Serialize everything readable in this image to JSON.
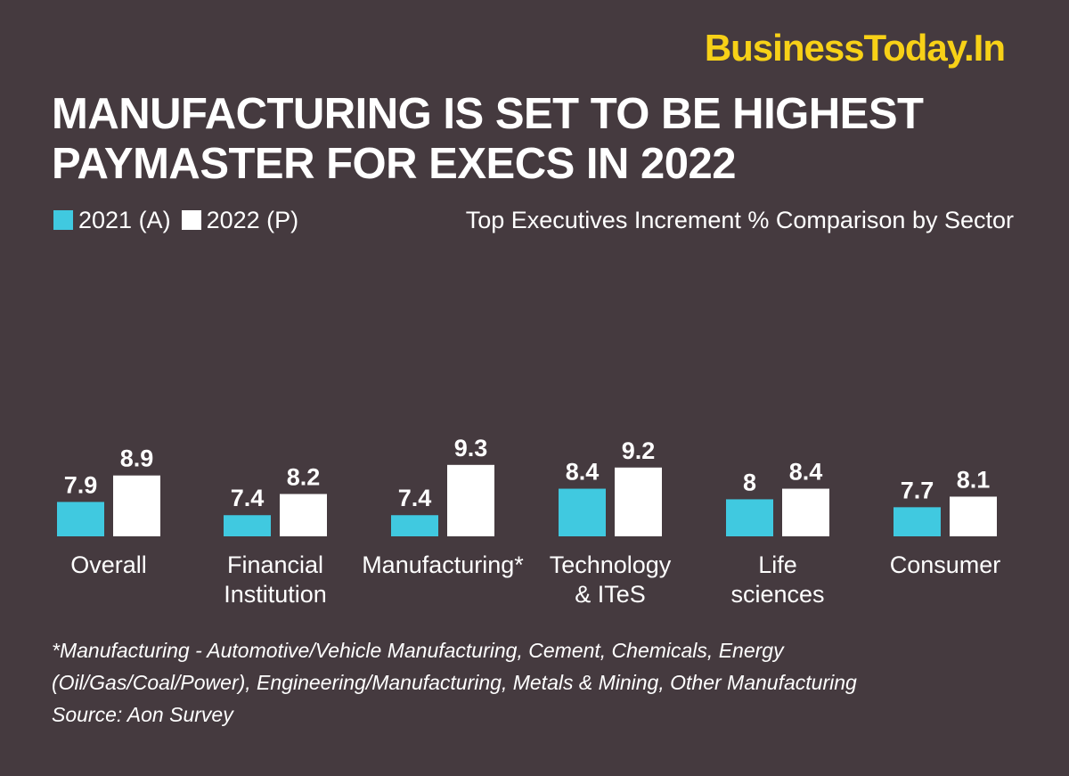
{
  "brand": "BusinessToday.In",
  "title": {
    "line1": "MANUFACTURING IS SET TO BE HIGHEST",
    "line2": "PAYMASTER FOR EXECS IN 2022"
  },
  "colors": {
    "background": "#453a3f",
    "brand": "#f7d117",
    "series_2021": "#40c9e0",
    "series_2022": "#ffffff"
  },
  "chart_data": {
    "type": "bar",
    "title": "Top Executives Increment % Comparison by Sector",
    "categories": [
      [
        "Overall"
      ],
      [
        "Financial",
        "Institution"
      ],
      [
        "Manufacturing*"
      ],
      [
        "Technology",
        "& ITeS"
      ],
      [
        "Life",
        "sciences"
      ],
      [
        "Consumer"
      ]
    ],
    "series": [
      {
        "name": "2021 (A)",
        "values": [
          7.9,
          7.4,
          7.4,
          8.4,
          8,
          7.7
        ],
        "labels": [
          "7.9",
          "7.4",
          "7.4",
          "8.4",
          "8",
          "7.7"
        ]
      },
      {
        "name": "2022 (P)",
        "values": [
          8.9,
          8.2,
          9.3,
          9.2,
          8.4,
          8.1
        ],
        "labels": [
          "8.9",
          "8.2",
          "9.3",
          "9.2",
          "8.4",
          "8.1"
        ]
      }
    ],
    "legend_position": "top-left",
    "grid": false,
    "ylabel": "",
    "xlabel": ""
  },
  "footnote": {
    "line1": "*Manufacturing - Automotive/Vehicle Manufacturing, Cement, Chemicals, Energy",
    "line2": "(Oil/Gas/Coal/Power), Engineering/Manufacturing, Metals & Mining, Other Manufacturing",
    "line3": "Source: Aon Survey"
  }
}
